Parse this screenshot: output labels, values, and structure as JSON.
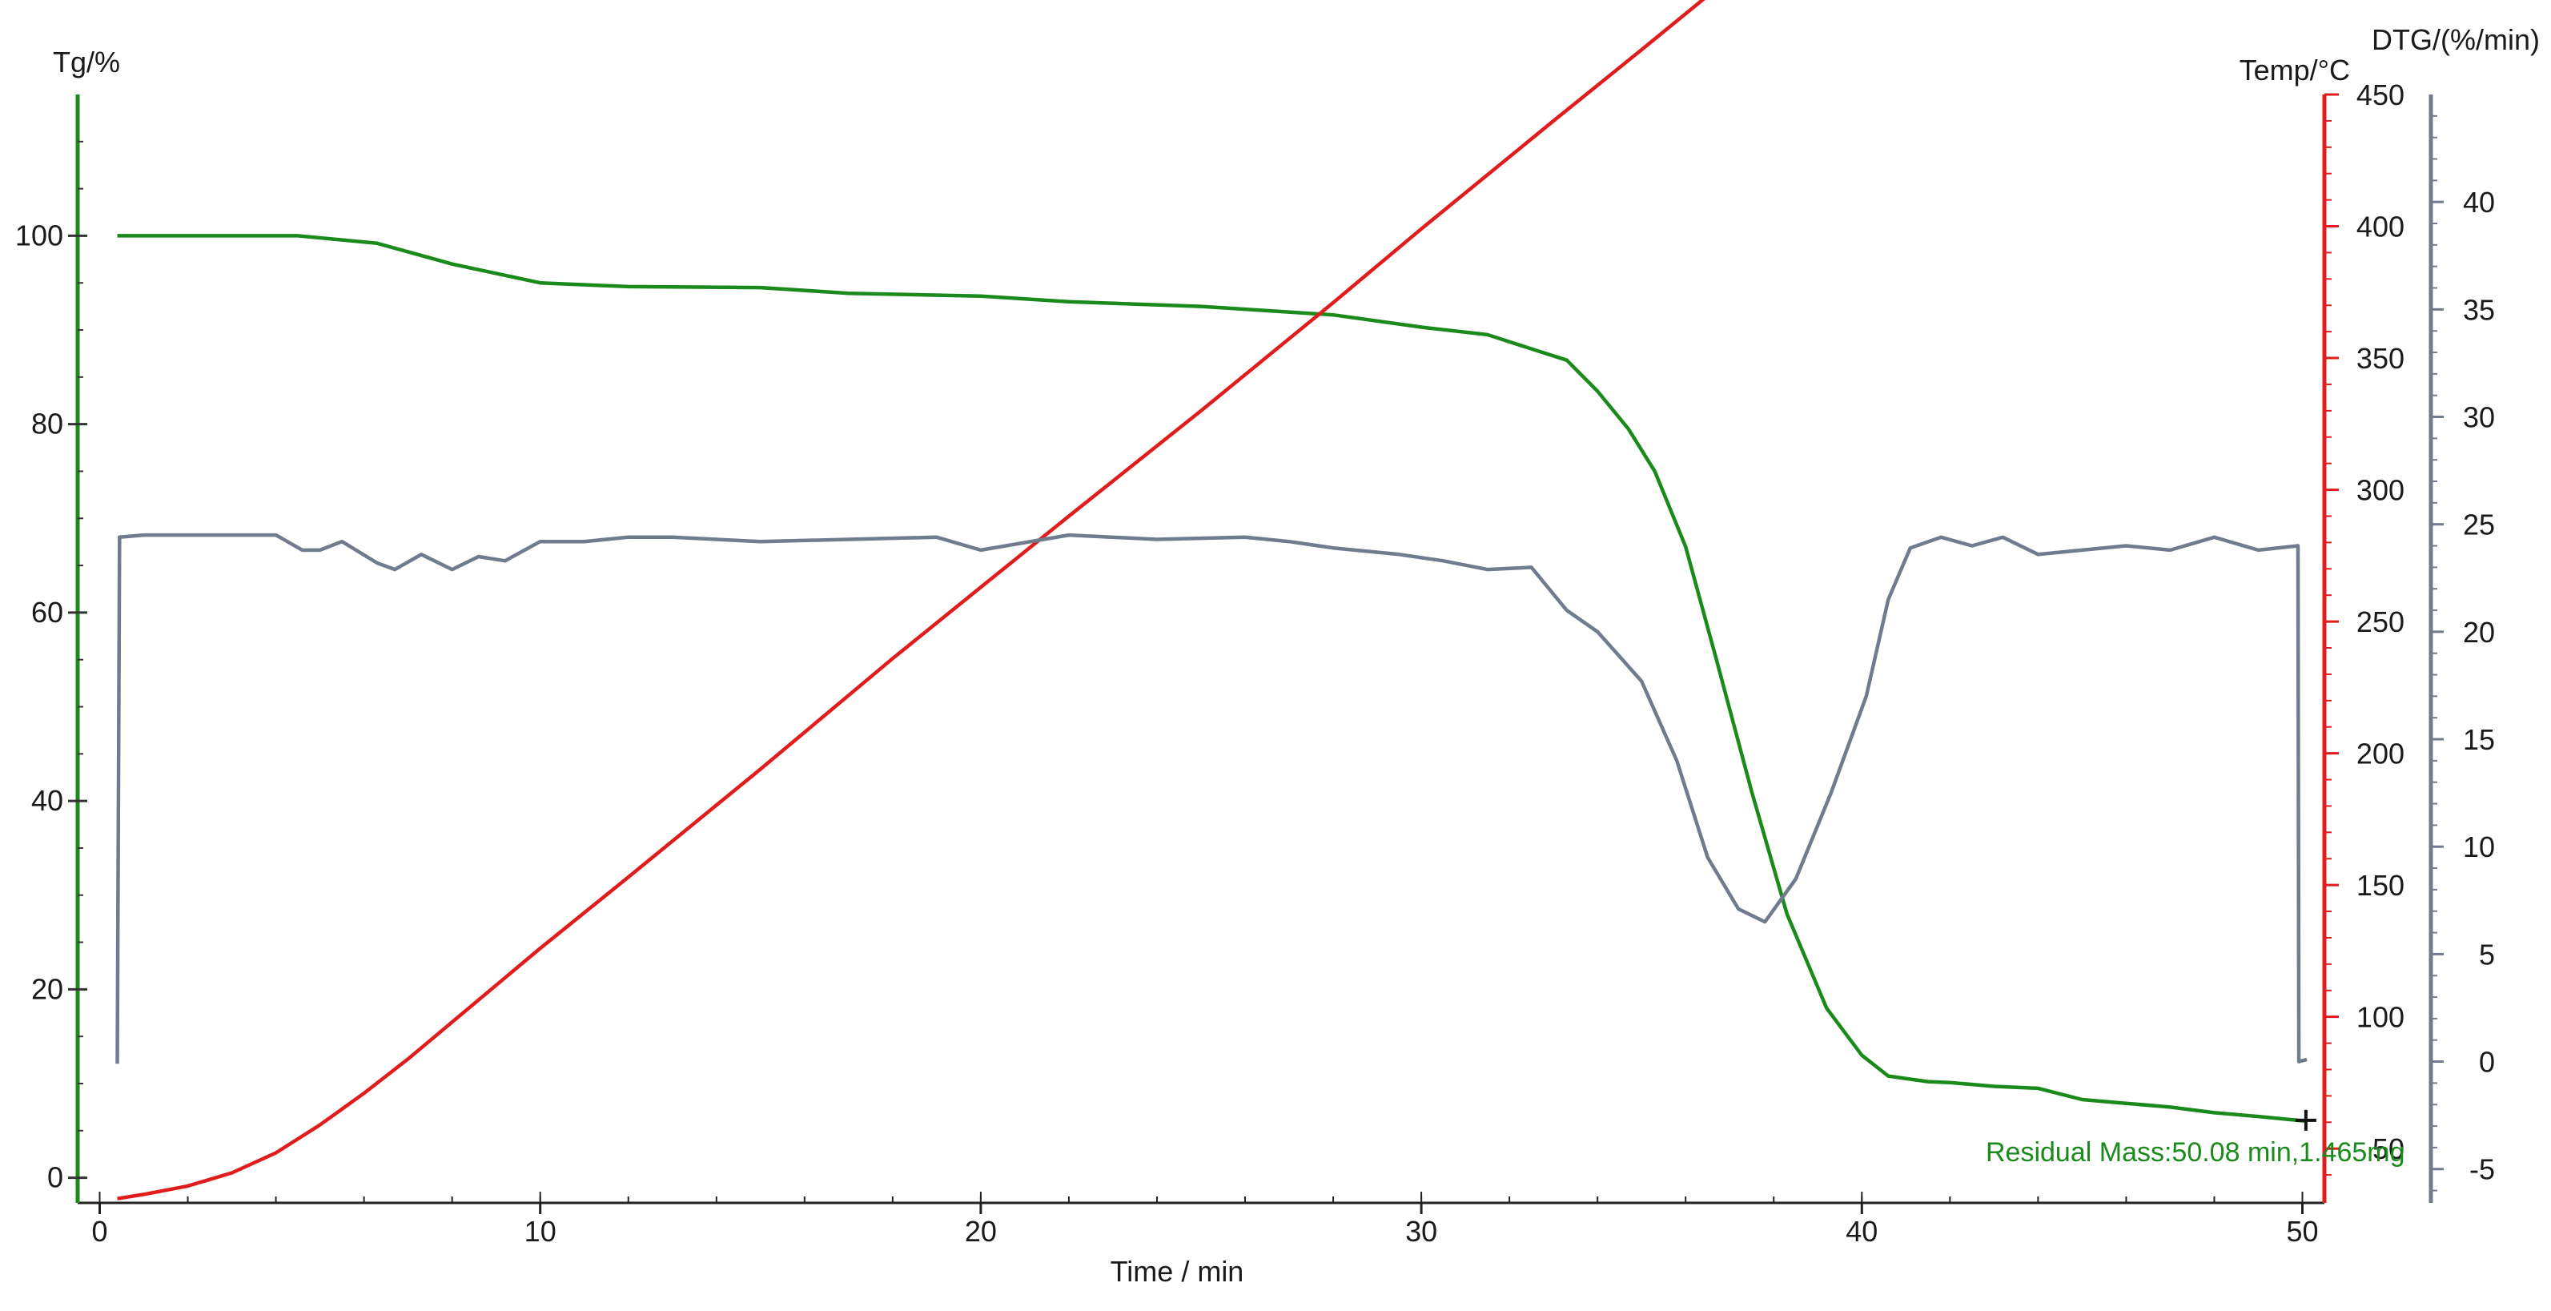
{
  "chart_data": {
    "type": "line",
    "xlabel": "Time / min",
    "x_ticks": [
      0,
      10,
      20,
      30,
      40,
      50
    ],
    "xlim": [
      -0.5,
      50.5
    ],
    "axes": {
      "tg": {
        "label": "Tg/%",
        "ticks": [
          0,
          20,
          40,
          60,
          80,
          100
        ],
        "range": [
          -2.5,
          115
        ],
        "color": "#1a8a1a"
      },
      "temp": {
        "label": "Temp/°C",
        "ticks": [
          50,
          100,
          150,
          200,
          250,
          300,
          350,
          400,
          450
        ],
        "range": [
          30,
          450
        ],
        "color": "#e01c1c"
      },
      "dtg": {
        "label": "DTG/(%/min)",
        "ticks": [
          -5,
          0,
          5,
          10,
          15,
          20,
          25,
          30,
          35,
          40
        ],
        "range": [
          -6.5,
          45
        ],
        "color": "#707b8e"
      }
    },
    "series": [
      {
        "axis": "tg",
        "color": "#1a8a1a",
        "points": [
          [
            0.4,
            100
          ],
          [
            4.5,
            100
          ],
          [
            6.3,
            99.2
          ],
          [
            8,
            97
          ],
          [
            10,
            95
          ],
          [
            12,
            94.6
          ],
          [
            15,
            94.5
          ],
          [
            17,
            93.9
          ],
          [
            20,
            93.6
          ],
          [
            22,
            93
          ],
          [
            25,
            92.5
          ],
          [
            28,
            91.6
          ],
          [
            30,
            90.3
          ],
          [
            31.5,
            89.5
          ],
          [
            32.5,
            88
          ],
          [
            33.3,
            86.8
          ],
          [
            34,
            83.5
          ],
          [
            34.7,
            79.5
          ],
          [
            35.3,
            75
          ],
          [
            36,
            67
          ],
          [
            36.7,
            55
          ],
          [
            37.5,
            41
          ],
          [
            38.3,
            28
          ],
          [
            39.2,
            18
          ],
          [
            40,
            13
          ],
          [
            40.6,
            10.8
          ],
          [
            41.5,
            10.2
          ],
          [
            42,
            10.1
          ],
          [
            43,
            9.7
          ],
          [
            44,
            9.5
          ],
          [
            45,
            8.3
          ],
          [
            46,
            7.9
          ],
          [
            47,
            7.5
          ],
          [
            48,
            6.9
          ],
          [
            49,
            6.5
          ],
          [
            50.1,
            6
          ]
        ]
      },
      {
        "axis": "temp",
        "color": "#e01c1c",
        "points": [
          [
            0.4,
            31
          ],
          [
            1,
            32.6
          ],
          [
            2,
            35.8
          ],
          [
            3,
            40.8
          ],
          [
            4,
            48.4
          ],
          [
            5,
            59
          ],
          [
            6,
            71
          ],
          [
            7,
            84
          ],
          [
            8,
            98
          ],
          [
            10,
            126
          ],
          [
            12,
            153
          ],
          [
            15,
            194
          ],
          [
            18,
            236
          ],
          [
            20,
            263
          ],
          [
            22,
            290
          ],
          [
            25,
            330
          ],
          [
            28,
            371
          ],
          [
            30,
            399
          ],
          [
            33,
            440
          ],
          [
            35,
            467
          ],
          [
            38,
            508
          ],
          [
            41,
            549
          ],
          [
            42,
            562
          ],
          [
            42.9,
            574
          ],
          [
            43.2,
            580
          ],
          [
            43.5,
            590
          ],
          [
            44,
            598
          ],
          [
            45,
            603
          ],
          [
            46,
            605.5
          ],
          [
            47,
            607.5
          ],
          [
            48,
            609
          ],
          [
            49,
            610.5
          ],
          [
            50.1,
            611
          ]
        ]
      },
      {
        "axis": "dtg",
        "color": "#707b8e",
        "points": [
          [
            0.4,
            -0.1
          ],
          [
            0.45,
            24.4
          ],
          [
            1,
            24.5
          ],
          [
            4,
            24.5
          ],
          [
            4.6,
            23.8
          ],
          [
            5,
            23.8
          ],
          [
            5.5,
            24.2
          ],
          [
            6.3,
            23.2
          ],
          [
            6.7,
            22.9
          ],
          [
            7.3,
            23.6
          ],
          [
            8,
            22.9
          ],
          [
            8.6,
            23.5
          ],
          [
            9.2,
            23.3
          ],
          [
            10,
            24.2
          ],
          [
            11,
            24.2
          ],
          [
            12,
            24.4
          ],
          [
            13,
            24.4
          ],
          [
            15,
            24.2
          ],
          [
            17,
            24.3
          ],
          [
            19,
            24.4
          ],
          [
            20,
            23.8
          ],
          [
            22,
            24.5
          ],
          [
            24,
            24.3
          ],
          [
            26,
            24.4
          ],
          [
            27,
            24.2
          ],
          [
            28,
            23.9
          ],
          [
            29.5,
            23.6
          ],
          [
            30.5,
            23.3
          ],
          [
            31.5,
            22.9
          ],
          [
            32.5,
            23
          ],
          [
            33.3,
            21
          ],
          [
            34,
            20
          ],
          [
            35,
            17.7
          ],
          [
            35.8,
            14
          ],
          [
            36.5,
            9.5
          ],
          [
            37.2,
            7.1
          ],
          [
            37.8,
            6.5
          ],
          [
            38.5,
            8.5
          ],
          [
            39.3,
            12.5
          ],
          [
            40.1,
            17
          ],
          [
            40.6,
            21.5
          ],
          [
            41.1,
            23.9
          ],
          [
            41.8,
            24.4
          ],
          [
            42.5,
            24
          ],
          [
            43.2,
            24.4
          ],
          [
            44,
            23.6
          ],
          [
            45,
            23.8
          ],
          [
            46,
            24
          ],
          [
            47,
            23.8
          ],
          [
            48,
            24.4
          ],
          [
            49,
            23.8
          ],
          [
            49.9,
            24.0
          ],
          [
            49.92,
            0
          ],
          [
            50.1,
            0.1
          ]
        ]
      }
    ],
    "annotation": {
      "text": "Residual Mass:50.08 min,1.465mg",
      "marker": "+",
      "x": 50.08,
      "y": 6.1,
      "axis": "tg"
    }
  }
}
